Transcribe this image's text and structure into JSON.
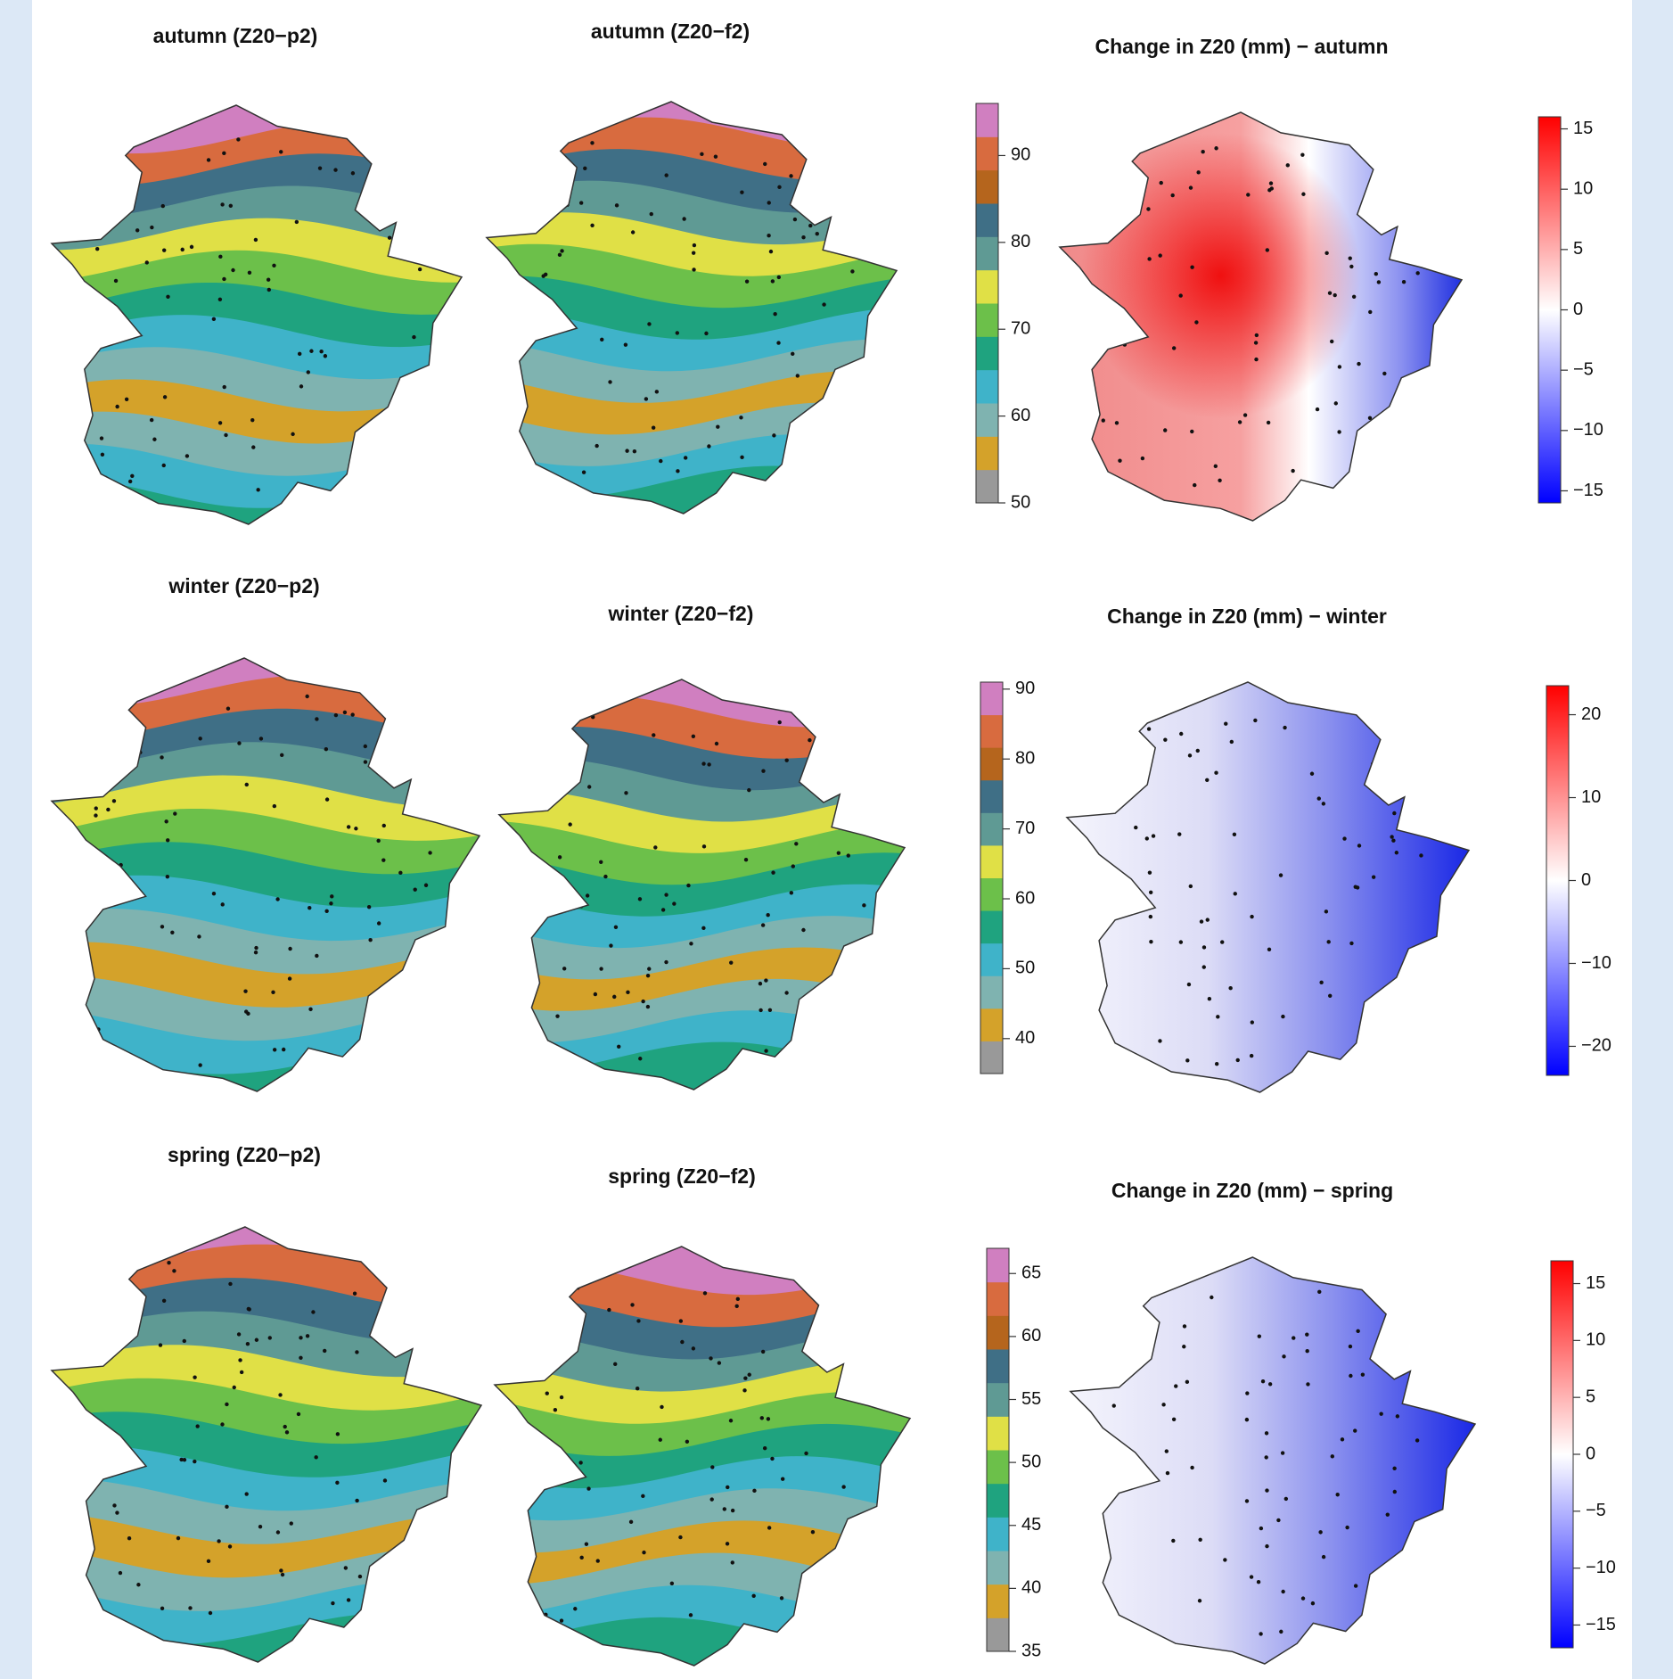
{
  "rows": [
    {
      "p2_title": "autumn (Z20−p2)",
      "f2_title": "autumn (Z20−f2)",
      "colorbar": {
        "lim": [
          50,
          96
        ],
        "ticks": [
          50,
          60,
          70,
          80,
          90
        ],
        "colors": [
          "#999999",
          "#d4a22a",
          "#7fb3b0",
          "#3fb3c9",
          "#1fa37f",
          "#6cc04a",
          "#e0e046",
          "#5f9a94",
          "#3f6f86",
          "#b5651d",
          "#d86b3f",
          "#d07fc0"
        ]
      },
      "change_title": "Change in Z20 (mm) − autumn",
      "change_colorbar": {
        "lim": [
          -16,
          16
        ],
        "ticks": [
          {
            "value": -15,
            "label": "−15"
          },
          {
            "value": -10,
            "label": "−10"
          },
          {
            "value": -5,
            "label": "−5"
          },
          0,
          5,
          10,
          15
        ],
        "colors": [
          "#0000ff",
          "#ffffff",
          "#ff0000"
        ]
      }
    },
    {
      "p2_title": "winter (Z20−p2)",
      "f2_title": "winter (Z20−f2)",
      "colorbar": {
        "lim": [
          35,
          91
        ],
        "ticks": [
          40,
          50,
          60,
          70,
          80,
          90
        ],
        "colors": [
          "#999999",
          "#d4a22a",
          "#7fb3b0",
          "#3fb3c9",
          "#1fa37f",
          "#6cc04a",
          "#e0e046",
          "#5f9a94",
          "#3f6f86",
          "#b5651d",
          "#d86b3f",
          "#d07fc0"
        ]
      },
      "change_title": "Change in Z20 (mm) − winter",
      "change_colorbar": {
        "lim": [
          -23.5,
          23.5
        ],
        "ticks": [
          {
            "value": -20,
            "label": "−20"
          },
          {
            "value": -10,
            "label": "−10"
          },
          0,
          10,
          20
        ],
        "colors": [
          "#0000ff",
          "#ffffff",
          "#ff0000"
        ]
      }
    },
    {
      "p2_title": "spring (Z20−p2)",
      "f2_title": "spring (Z20−f2)",
      "colorbar": {
        "lim": [
          35,
          67
        ],
        "ticks": [
          35,
          40,
          45,
          50,
          55,
          60,
          65
        ],
        "colors": [
          "#999999",
          "#d4a22a",
          "#7fb3b0",
          "#3fb3c9",
          "#1fa37f",
          "#6cc04a",
          "#e0e046",
          "#5f9a94",
          "#3f6f86",
          "#b5651d",
          "#d86b3f",
          "#d07fc0"
        ]
      },
      "change_title": "Change in Z20 (mm) − spring",
      "change_colorbar": {
        "lim": [
          -17,
          17
        ],
        "ticks": [
          {
            "value": -15,
            "label": "−15"
          },
          {
            "value": -10,
            "label": "−10"
          },
          {
            "value": -5,
            "label": "−5"
          },
          0,
          5,
          10,
          15
        ],
        "colors": [
          "#0000ff",
          "#ffffff",
          "#ff0000"
        ]
      }
    }
  ]
}
